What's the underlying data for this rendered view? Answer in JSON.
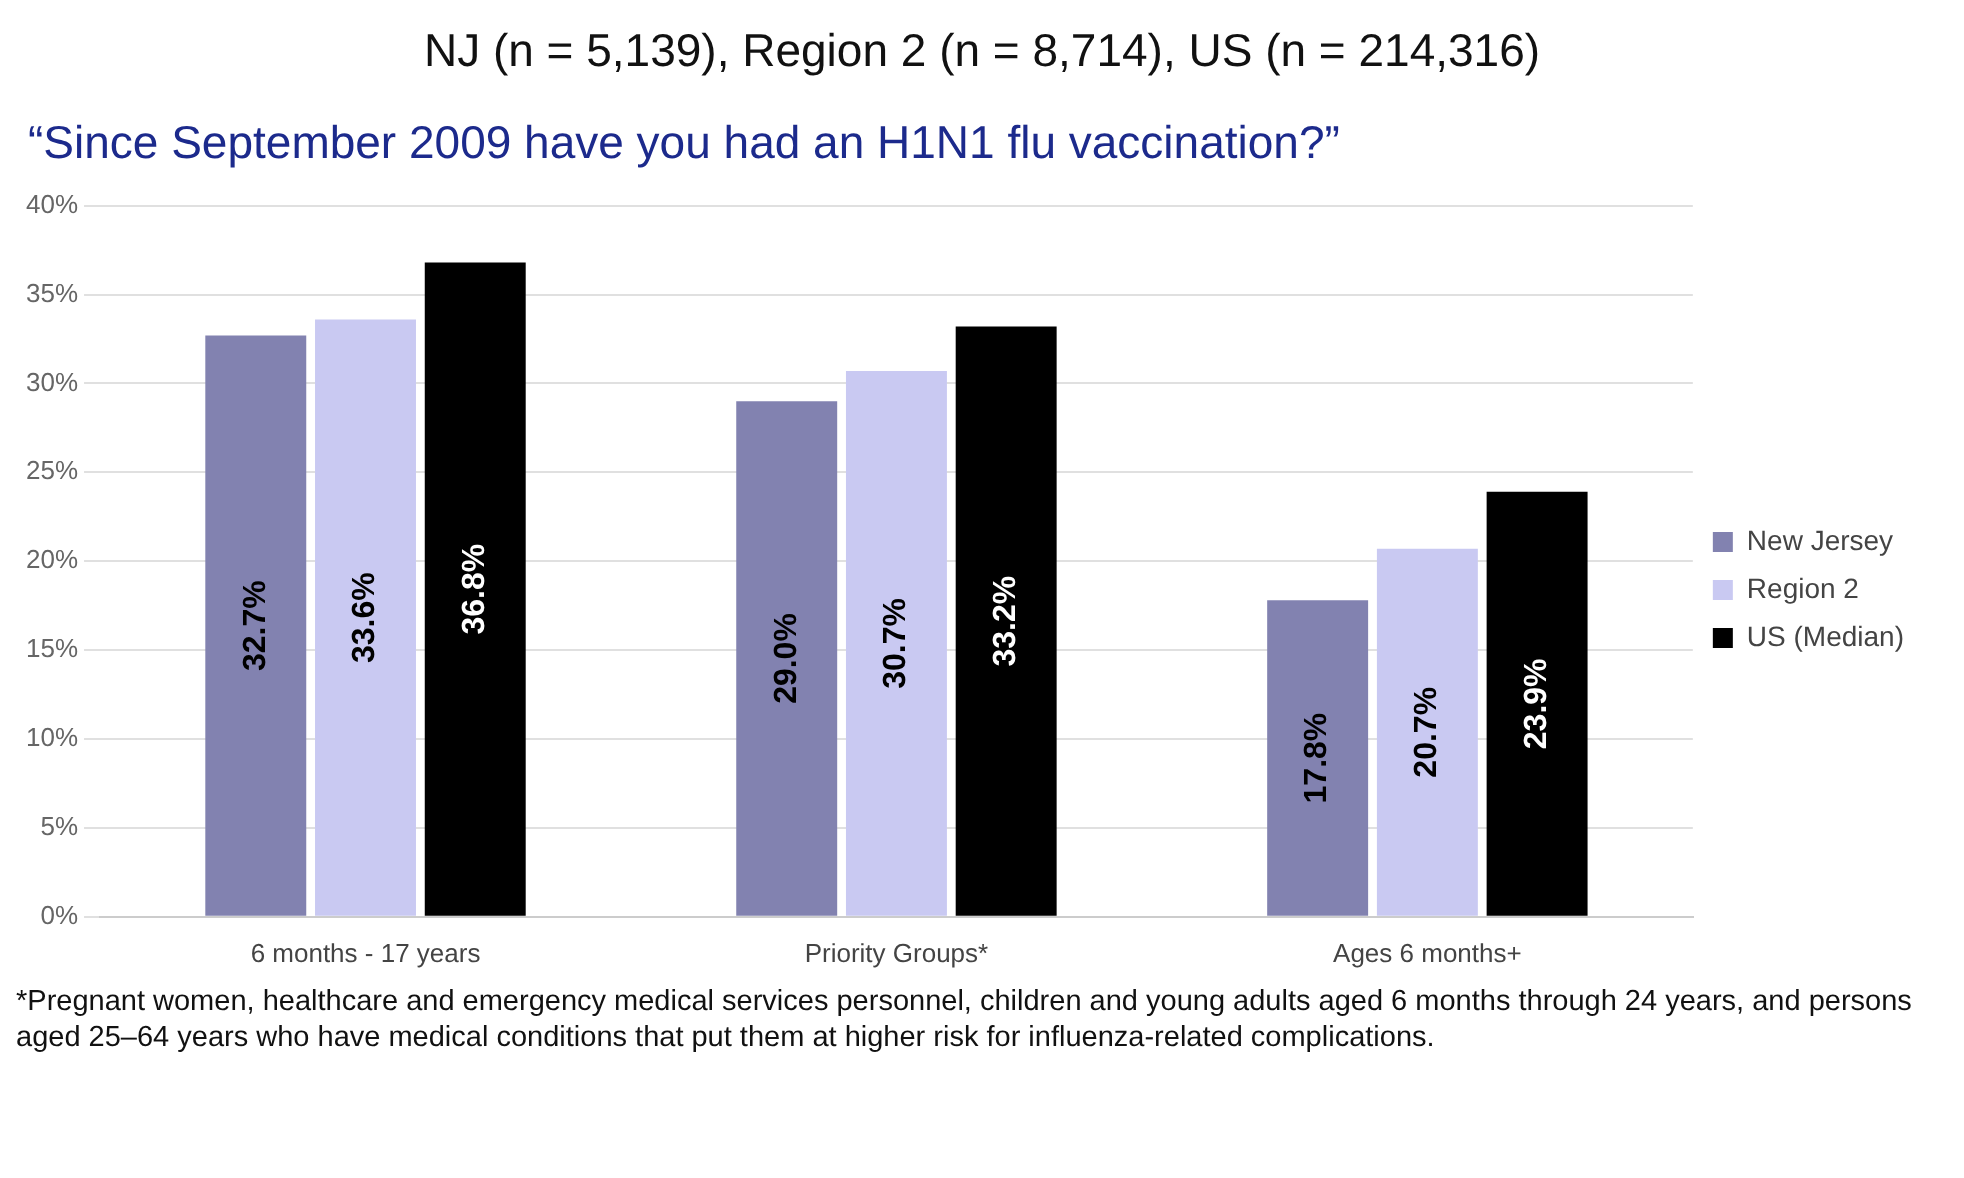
{
  "chart_data": {
    "type": "bar",
    "title": "NJ (n = 5,139), Region 2 (n = 8,714), US (n = 214,316)",
    "subtitle": "“Since September 2009 have you had an H1N1 flu vaccination?”",
    "categories": [
      "6 months - 17 years",
      "Priority Groups*",
      "Ages 6 months+"
    ],
    "series": [
      {
        "name": "New Jersey",
        "color": "#8282b0",
        "values": [
          32.7,
          29.0,
          17.8
        ],
        "value_labels": [
          "32.7%",
          "29.0%",
          "17.8%"
        ]
      },
      {
        "name": "Region 2",
        "color": "#c9c9f2",
        "values": [
          33.6,
          30.7,
          20.7
        ],
        "value_labels": [
          "33.6%",
          "30.7%",
          "20.7%"
        ]
      },
      {
        "name": "US (Median)",
        "color": "#000000",
        "values": [
          36.8,
          33.2,
          23.9
        ],
        "value_labels": [
          "36.8%",
          "33.2%",
          "23.9%"
        ]
      }
    ],
    "ylim": [
      0,
      40
    ],
    "yticks": [
      {
        "value": 0,
        "label": "0%"
      },
      {
        "value": 5,
        "label": "5%"
      },
      {
        "value": 10,
        "label": "10%"
      },
      {
        "value": 15,
        "label": "15%"
      },
      {
        "value": 20,
        "label": "20%"
      },
      {
        "value": 25,
        "label": "25%"
      },
      {
        "value": 30,
        "label": "30%"
      },
      {
        "value": 35,
        "label": "35%"
      },
      {
        "value": 40,
        "label": "40%"
      }
    ],
    "grid": "y",
    "legend": "right",
    "annotations": [
      "*Pregnant women, healthcare and emergency medical services personnel, children and young adults aged 6 months through 24 years, and persons aged 25–64 years who have medical conditions that put them at higher risk for influenza-related complications."
    ]
  }
}
